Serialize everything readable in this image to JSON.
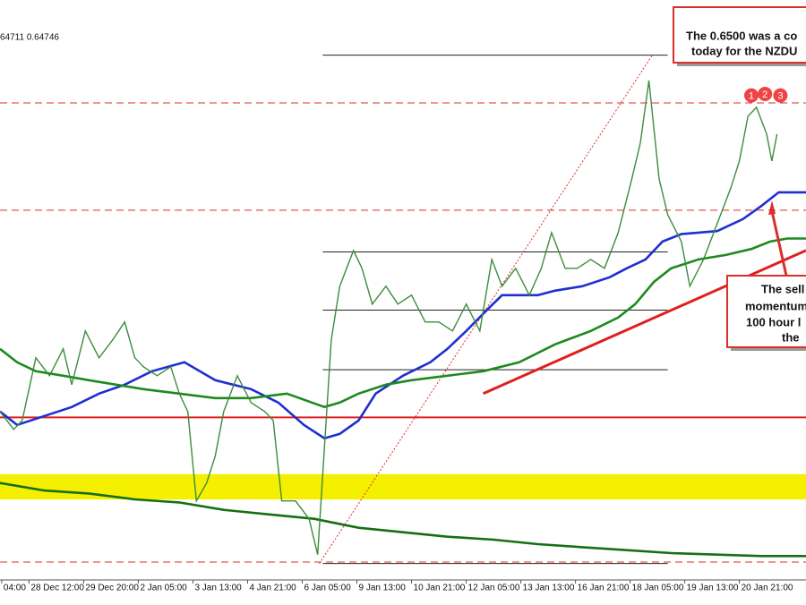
{
  "chart_data": {
    "type": "line",
    "header": "64711 0.64746",
    "xlim": [
      0,
      472
    ],
    "ylim": [
      0.618,
      0.6569
    ],
    "xticks": [
      {
        "value": 1,
        "label": "04:00"
      },
      {
        "value": 17,
        "label": "28 Dec 12:00"
      },
      {
        "value": 49,
        "label": "29 Dec 20:00"
      },
      {
        "value": 81,
        "label": "2 Jan 05:00"
      },
      {
        "value": 113,
        "label": "3 Jan 13:00"
      },
      {
        "value": 145,
        "label": "4 Jan 21:00"
      },
      {
        "value": 177,
        "label": "6 Jan 05:00"
      },
      {
        "value": 209,
        "label": "9 Jan 13:00"
      },
      {
        "value": 241,
        "label": "10 Jan 21:00"
      },
      {
        "value": 273,
        "label": "12 Jan 05:00"
      },
      {
        "value": 305,
        "label": "13 Jan 13:00"
      },
      {
        "value": 337,
        "label": "16 Jan 21:00"
      },
      {
        "value": 369,
        "label": "18 Jan 05:00"
      },
      {
        "value": 401,
        "label": "19 Jan 13:00"
      },
      {
        "value": 433,
        "label": "20 Jan 21:00"
      }
    ],
    "series": [
      {
        "color": "#3c8c3c",
        "x": [
          0,
          8,
          13,
          21,
          29,
          37,
          42,
          50,
          58,
          66,
          73,
          79,
          84,
          92,
          100,
          105,
          110,
          115,
          121,
          126,
          131,
          139,
          147,
          155,
          160,
          165,
          173,
          181,
          186,
          190,
          194,
          199,
          207,
          212,
          218,
          226,
          233,
          241,
          249,
          257,
          265,
          273,
          281,
          288,
          294,
          302,
          310,
          317,
          323,
          331,
          338,
          346,
          354,
          362,
          370,
          375,
          380,
          386,
          391,
          399,
          404,
          412,
          420,
          428,
          433,
          438,
          443,
          449,
          452,
          455
        ],
        "values": [
          0.6293,
          0.6281,
          0.6287,
          0.6329,
          0.6317,
          0.6335,
          0.6311,
          0.6347,
          0.6329,
          0.6341,
          0.6353,
          0.6329,
          0.6323,
          0.6317,
          0.6323,
          0.6305,
          0.6293,
          0.6233,
          0.6245,
          0.6263,
          0.6293,
          0.6317,
          0.6299,
          0.6293,
          0.6287,
          0.6233,
          0.6233,
          0.6221,
          0.6197,
          0.6269,
          0.6341,
          0.6377,
          0.6401,
          0.6389,
          0.6365,
          0.6377,
          0.6365,
          0.6371,
          0.6353,
          0.6353,
          0.6347,
          0.6365,
          0.6347,
          0.6395,
          0.6377,
          0.6389,
          0.6371,
          0.6389,
          0.6413,
          0.6389,
          0.6389,
          0.6395,
          0.6389,
          0.6413,
          0.6449,
          0.6473,
          0.6515,
          0.6449,
          0.6425,
          0.6407,
          0.6377,
          0.6395,
          0.6419,
          0.6443,
          0.6461,
          0.6491,
          0.6497,
          0.6479,
          0.6461,
          0.6479
        ]
      },
      {
        "color": "#1f2fd0",
        "x": [
          0,
          10,
          26,
          42,
          58,
          73,
          89,
          108,
          126,
          147,
          163,
          178,
          190,
          199,
          210,
          220,
          236,
          252,
          262,
          273,
          286,
          294,
          315,
          325,
          341,
          357,
          367,
          378,
          388,
          399,
          420,
          435,
          446,
          456,
          472
        ],
        "values": [
          0.6293,
          0.6284,
          0.629,
          0.6296,
          0.6305,
          0.6311,
          0.632,
          0.6326,
          0.6314,
          0.6308,
          0.6299,
          0.6284,
          0.6275,
          0.6278,
          0.6287,
          0.6305,
          0.6317,
          0.6326,
          0.6335,
          0.6347,
          0.6362,
          0.6371,
          0.6371,
          0.6374,
          0.6377,
          0.6383,
          0.6389,
          0.6395,
          0.6407,
          0.6412,
          0.6414,
          0.6422,
          0.6431,
          0.644,
          0.644
        ]
      },
      {
        "color": "#1e8a1e",
        "x": [
          0,
          10,
          21,
          37,
          52,
          68,
          84,
          105,
          126,
          147,
          168,
          190,
          199,
          210,
          226,
          241,
          262,
          283,
          304,
          325,
          346,
          362,
          372,
          383,
          393,
          409,
          425,
          440,
          451,
          461,
          472
        ],
        "values": [
          0.6335,
          0.6326,
          0.632,
          0.6317,
          0.6314,
          0.6311,
          0.6308,
          0.6305,
          0.6302,
          0.6302,
          0.6305,
          0.6296,
          0.6299,
          0.6305,
          0.6311,
          0.6314,
          0.6317,
          0.632,
          0.6326,
          0.6338,
          0.6347,
          0.6356,
          0.6365,
          0.638,
          0.6389,
          0.6395,
          0.6398,
          0.6402,
          0.6407,
          0.6409,
          0.6409
        ]
      },
      {
        "color": "#157015",
        "x": [
          0,
          26,
          52,
          79,
          105,
          131,
          157,
          184,
          210,
          236,
          262,
          289,
          315,
          341,
          367,
          393,
          420,
          446,
          472
        ],
        "values": [
          0.6245,
          0.624,
          0.6238,
          0.6234,
          0.6232,
          0.6227,
          0.6224,
          0.6221,
          0.6215,
          0.6212,
          0.6209,
          0.6207,
          0.6204,
          0.6202,
          0.62,
          0.6198,
          0.6197,
          0.6196,
          0.6196
        ]
      }
    ],
    "levels": [
      {
        "value": 0.65,
        "color": "#d9302a",
        "style": "dashed"
      },
      {
        "value": 0.6428,
        "color": "#d9302a",
        "style": "dashed"
      },
      {
        "value": 0.6289,
        "color": "#e02020",
        "style": "solid"
      },
      {
        "value": 0.6192,
        "color": "#d9302a",
        "style": "dashed"
      }
    ],
    "band": {
      "values": [
        0.6234,
        0.6251
      ],
      "color": "#f5f000"
    },
    "fib": {
      "x": [
        189,
        391
      ],
      "levels": [
        0.6532,
        0.64,
        0.6361,
        0.6321,
        0.6191
      ]
    },
    "fib_diagonal": {
      "x": [
        187,
        382
      ],
      "values": [
        0.6191,
        0.6532
      ],
      "color": "#d9302a"
    },
    "trendline": {
      "x": [
        283,
        472
      ],
      "values": [
        0.6305,
        0.6401
      ],
      "color": "#e02020"
    },
    "markers": {
      "labels": [
        "1",
        "2",
        "3"
      ],
      "x": [
        440,
        448,
        457
      ],
      "values": [
        0.6505,
        0.6506,
        0.6505
      ],
      "color": "#ee4444"
    },
    "annotations": [
      {
        "lines": [
          "The 0.6500 was a co",
          "today for the NZDU"
        ]
      },
      {
        "lines": [
          "The sell",
          "momentum",
          "100 hour l",
          "the"
        ]
      }
    ]
  }
}
